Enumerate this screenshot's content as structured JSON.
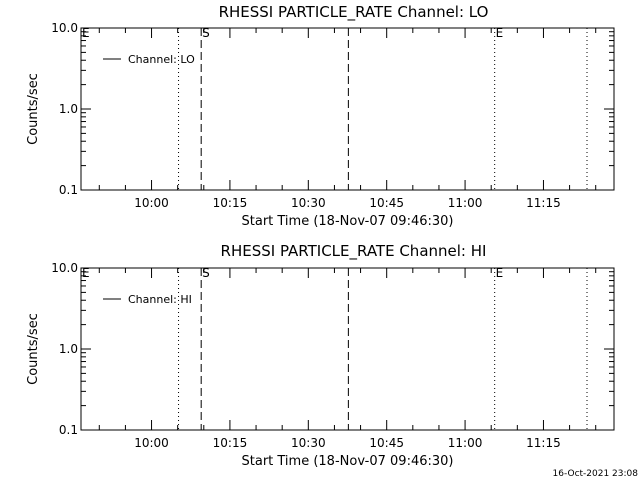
{
  "chart_data": [
    {
      "type": "line",
      "title": "RHESSI PARTICLE_RATE Channel: LO",
      "xlabel": "Start Time (18-Nov-07 09:46:30)",
      "ylabel": "Counts/sec",
      "xlim": [
        "09:46:30",
        "11:28:30"
      ],
      "ylim": [
        0.1,
        10.0
      ],
      "yscale": "log",
      "x_tick_labels": [
        "10:00",
        "10:15",
        "10:30",
        "10:45",
        "11:00",
        "11:15"
      ],
      "y_tick_labels": [
        "0.1",
        "1.0",
        "10.0"
      ],
      "legend": {
        "position": "top-left",
        "entries": [
          "Channel: LO"
        ]
      },
      "grid": false,
      "series": [
        {
          "name": "Channel: LO",
          "values": []
        }
      ],
      "events": [
        {
          "time": "09:46:30",
          "label": "E",
          "style": "dotted"
        },
        {
          "time": "10:05:10",
          "label": "",
          "style": "dotted"
        },
        {
          "time": "10:09:30",
          "label": "S",
          "style": "dashed"
        },
        {
          "time": "10:37:40",
          "label": "",
          "style": "dashed"
        },
        {
          "time": "11:05:40",
          "label": "E",
          "style": "dotted"
        },
        {
          "time": "11:23:20",
          "label": "",
          "style": "dotted"
        }
      ]
    },
    {
      "type": "line",
      "title": "RHESSI PARTICLE_RATE Channel: HI",
      "xlabel": "Start Time (18-Nov-07 09:46:30)",
      "ylabel": "Counts/sec",
      "xlim": [
        "09:46:30",
        "11:28:30"
      ],
      "ylim": [
        0.1,
        10.0
      ],
      "yscale": "log",
      "x_tick_labels": [
        "10:00",
        "10:15",
        "10:30",
        "10:45",
        "11:00",
        "11:15"
      ],
      "y_tick_labels": [
        "0.1",
        "1.0",
        "10.0"
      ],
      "legend": {
        "position": "top-left",
        "entries": [
          "Channel: HI"
        ]
      },
      "grid": false,
      "series": [
        {
          "name": "Channel: HI",
          "values": []
        }
      ],
      "events": [
        {
          "time": "09:46:30",
          "label": "E",
          "style": "dotted"
        },
        {
          "time": "10:05:10",
          "label": "",
          "style": "dotted"
        },
        {
          "time": "10:09:30",
          "label": "S",
          "style": "dashed"
        },
        {
          "time": "10:37:40",
          "label": "",
          "style": "dashed"
        },
        {
          "time": "11:05:40",
          "label": "E",
          "style": "dotted"
        },
        {
          "time": "11:23:20",
          "label": "",
          "style": "dotted"
        }
      ]
    }
  ],
  "footer": {
    "timestamp": "16-Oct-2021 23:08"
  }
}
